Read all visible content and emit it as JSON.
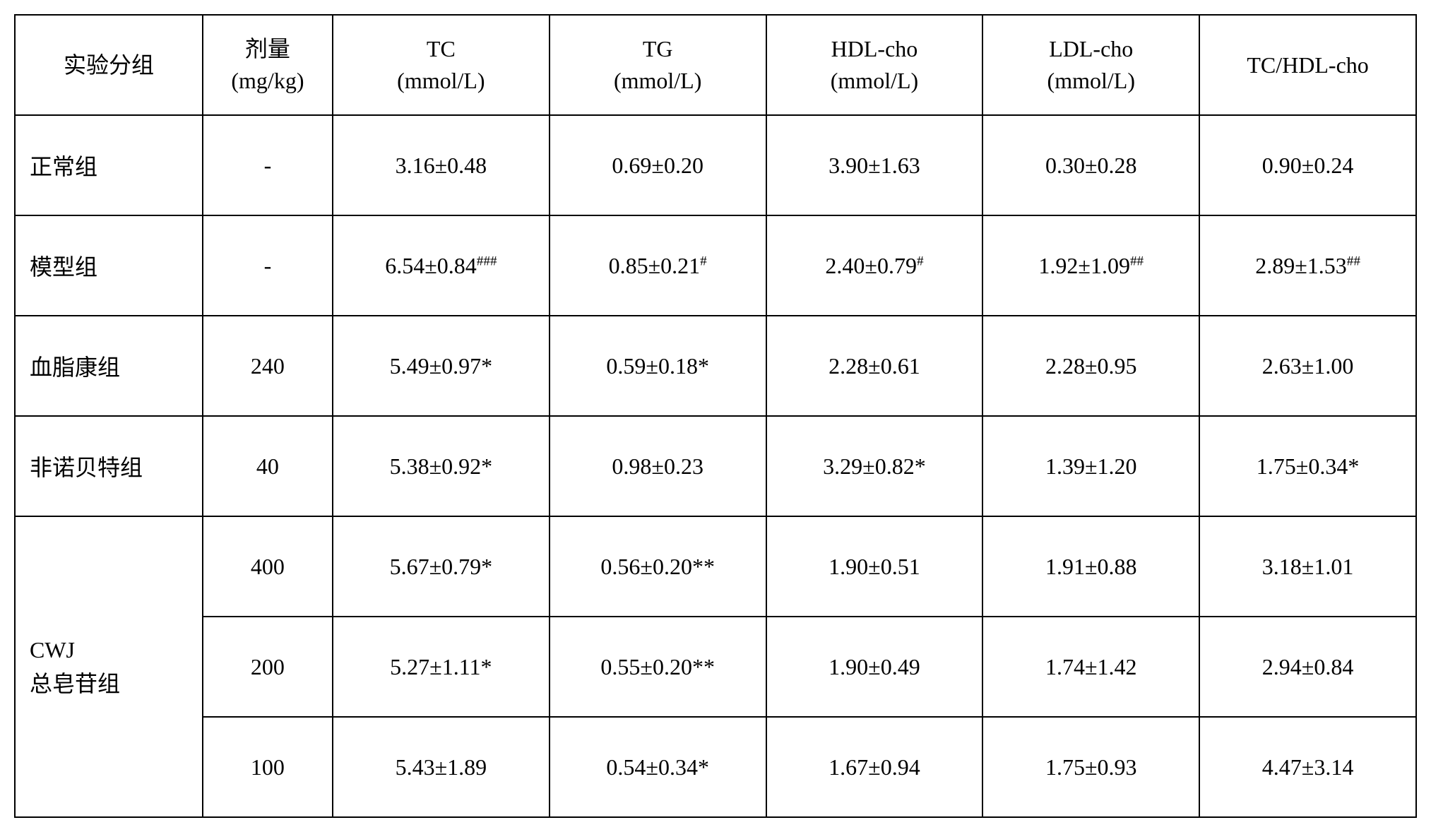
{
  "table": {
    "type": "table",
    "border_color": "#000000",
    "background_color": "#ffffff",
    "text_color": "#000000",
    "font_size_pt": 24,
    "columns": [
      {
        "label_line1": "实验分组",
        "label_line2": ""
      },
      {
        "label_line1": "剂量",
        "label_line2": "(mg/kg)"
      },
      {
        "label_line1": "TC",
        "label_line2": "(mmol/L)"
      },
      {
        "label_line1": "TG",
        "label_line2": "(mmol/L)"
      },
      {
        "label_line1": "HDL-cho",
        "label_line2": "(mmol/L)"
      },
      {
        "label_line1": "LDL-cho",
        "label_line2": "(mmol/L)"
      },
      {
        "label_line1": "TC/HDL-cho",
        "label_line2": ""
      }
    ],
    "rows": [
      {
        "group": "正常组",
        "dose": "-",
        "tc": "3.16±0.48",
        "tg": "0.69±0.20",
        "hdl": "3.90±1.63",
        "ldl": "0.30±0.28",
        "ratio": "0.90±0.24"
      },
      {
        "group": "模型组",
        "dose": "-",
        "tc": "6.54±0.84###",
        "tg": "0.85±0.21#",
        "hdl": "2.40±0.79#",
        "ldl": "1.92±1.09##",
        "ratio": "2.89±1.53##"
      },
      {
        "group": "血脂康组",
        "dose": "240",
        "tc": "5.49±0.97*",
        "tg": "0.59±0.18*",
        "hdl": "2.28±0.61",
        "ldl": "2.28±0.95",
        "ratio": "2.63±1.00"
      },
      {
        "group": "非诺贝特组",
        "dose": "40",
        "tc": "5.38±0.92*",
        "tg": "0.98±0.23",
        "hdl": "3.29±0.82*",
        "ldl": "1.39±1.20",
        "ratio": "1.75±0.34*"
      }
    ],
    "cwj_group_label_line1": "CWJ",
    "cwj_group_label_line2": "总皂苷组",
    "cwj_rows": [
      {
        "dose": "400",
        "tc": "5.67±0.79*",
        "tg": "0.56±0.20**",
        "hdl": "1.90±0.51",
        "ldl": "1.91±0.88",
        "ratio": "3.18±1.01"
      },
      {
        "dose": "200",
        "tc": "5.27±1.11*",
        "tg": "0.55±0.20**",
        "hdl": "1.90±0.49",
        "ldl": "1.74±1.42",
        "ratio": "2.94±0.84"
      },
      {
        "dose": "100",
        "tc": "5.43±1.89",
        "tg": "0.54±0.34*",
        "hdl": "1.67±0.94",
        "ldl": "1.75±0.93",
        "ratio": "4.47±3.14"
      }
    ]
  }
}
